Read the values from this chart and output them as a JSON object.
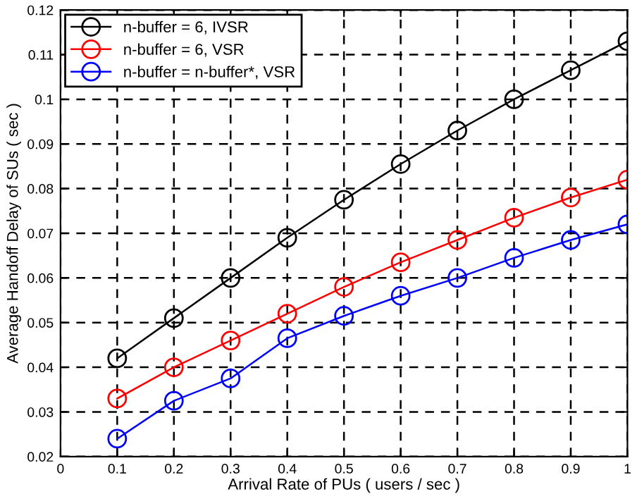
{
  "chart_data": {
    "type": "line",
    "xlabel": "Arrival Rate of PUs ( users / sec )",
    "ylabel": "Average Handoff Delay of SUs ( sec )",
    "x": [
      0.1,
      0.2,
      0.3,
      0.4,
      0.5,
      0.6,
      0.7,
      0.8,
      0.9,
      1
    ],
    "series": [
      {
        "name": "n-buffer = 6, IVSR",
        "color": "#000000",
        "values": [
          0.042,
          0.051,
          0.06,
          0.069,
          0.0775,
          0.0855,
          0.093,
          0.1,
          0.1065,
          0.113
        ]
      },
      {
        "name": "n-buffer = 6, VSR",
        "color": "#ff0000",
        "values": [
          0.033,
          0.04,
          0.046,
          0.052,
          0.058,
          0.0635,
          0.0685,
          0.0735,
          0.078,
          0.082
        ]
      },
      {
        "name": "n-buffer = n-buffer*, VSR",
        "color": "#0000ff",
        "values": [
          0.024,
          0.0325,
          0.0375,
          0.0465,
          0.0515,
          0.056,
          0.06,
          0.0645,
          0.0685,
          0.072
        ]
      }
    ],
    "xlim": [
      0,
      1
    ],
    "ylim": [
      0.02,
      0.12
    ],
    "xticks": [
      0,
      0.1,
      0.2,
      0.3,
      0.4,
      0.5,
      0.6,
      0.7,
      0.8,
      0.9,
      1
    ],
    "yticks": [
      0.02,
      0.03,
      0.04,
      0.05,
      0.06,
      0.07,
      0.08,
      0.09,
      0.1,
      0.11,
      0.12
    ],
    "grid": true,
    "legend": "top left",
    "marker": "circle",
    "line_style": "solid"
  }
}
